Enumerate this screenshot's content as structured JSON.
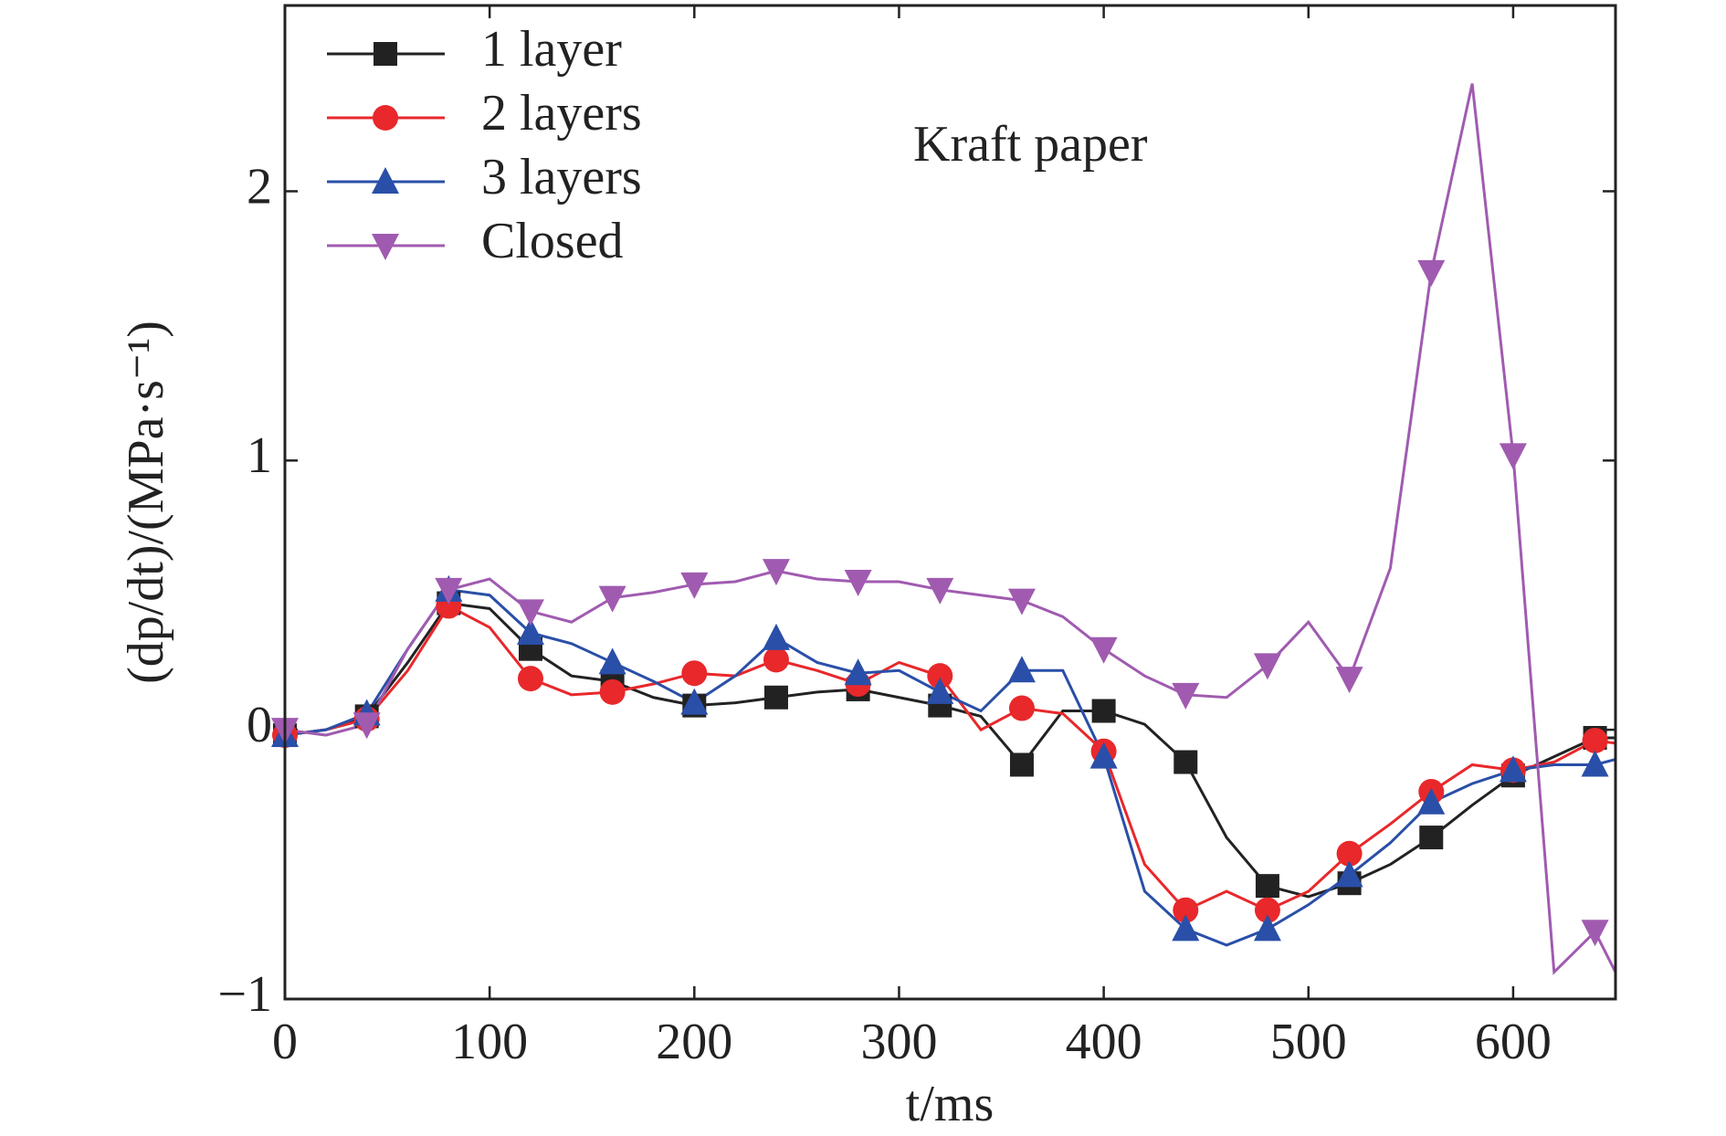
{
  "chart_data": {
    "type": "line",
    "annotation": "Kraft paper",
    "x_label": "t/ms",
    "y_label": "(dp/dt)/(MPa·s⁻¹)",
    "x": [
      0,
      20,
      40,
      60,
      80,
      100,
      120,
      140,
      160,
      180,
      200,
      220,
      240,
      260,
      280,
      300,
      320,
      340,
      360,
      380,
      400,
      420,
      440,
      460,
      480,
      500,
      520,
      540,
      560,
      580,
      600,
      620,
      640,
      650
    ],
    "series": [
      {
        "name": "1 layer",
        "color": "#222222",
        "marker": "square",
        "values": [
          -0.02,
          0.0,
          0.05,
          0.25,
          0.47,
          0.45,
          0.3,
          0.2,
          0.18,
          0.12,
          0.09,
          0.1,
          0.12,
          0.14,
          0.15,
          0.12,
          0.09,
          0.05,
          -0.13,
          0.07,
          0.07,
          0.02,
          -0.12,
          -0.4,
          -0.58,
          -0.62,
          -0.57,
          -0.5,
          -0.4,
          -0.28,
          -0.17,
          -0.1,
          -0.03,
          -0.03
        ]
      },
      {
        "name": "2 layers",
        "color": "#e8282b",
        "marker": "circle",
        "values": [
          -0.02,
          0.0,
          0.04,
          0.22,
          0.46,
          0.38,
          0.19,
          0.13,
          0.14,
          0.17,
          0.21,
          0.2,
          0.26,
          0.22,
          0.17,
          0.25,
          0.2,
          0.0,
          0.08,
          0.06,
          -0.08,
          -0.5,
          -0.67,
          -0.6,
          -0.67,
          -0.6,
          -0.46,
          -0.35,
          -0.23,
          -0.13,
          -0.15,
          -0.12,
          -0.04,
          -0.05
        ]
      },
      {
        "name": "3 layers",
        "color": "#2a4fa8",
        "marker": "triangle-up",
        "values": [
          -0.02,
          0.0,
          0.06,
          0.3,
          0.52,
          0.5,
          0.36,
          0.32,
          0.25,
          0.18,
          0.1,
          0.2,
          0.34,
          0.25,
          0.21,
          0.22,
          0.14,
          0.07,
          0.22,
          0.22,
          -0.1,
          -0.6,
          -0.74,
          -0.8,
          -0.74,
          -0.65,
          -0.54,
          -0.42,
          -0.27,
          -0.2,
          -0.15,
          -0.13,
          -0.13,
          -0.11
        ]
      },
      {
        "name": "Closed",
        "color": "#a05bb0",
        "marker": "triangle-down",
        "values": [
          0.0,
          -0.02,
          0.02,
          0.3,
          0.52,
          0.56,
          0.44,
          0.4,
          0.49,
          0.51,
          0.54,
          0.55,
          0.59,
          0.56,
          0.55,
          0.55,
          0.52,
          0.5,
          0.48,
          0.42,
          0.3,
          0.2,
          0.13,
          0.12,
          0.24,
          0.4,
          0.19,
          0.6,
          1.7,
          2.4,
          1.02,
          -0.9,
          -0.75,
          -0.9
        ]
      }
    ],
    "xlim": [
      0,
      650
    ],
    "xticks": [
      0,
      100,
      200,
      300,
      400,
      500,
      600
    ],
    "ylim": [
      -1,
      2.69
    ],
    "yticks": [
      {
        "value": -1,
        "label": "−1"
      },
      0,
      1,
      2
    ],
    "legend": "upper left"
  }
}
